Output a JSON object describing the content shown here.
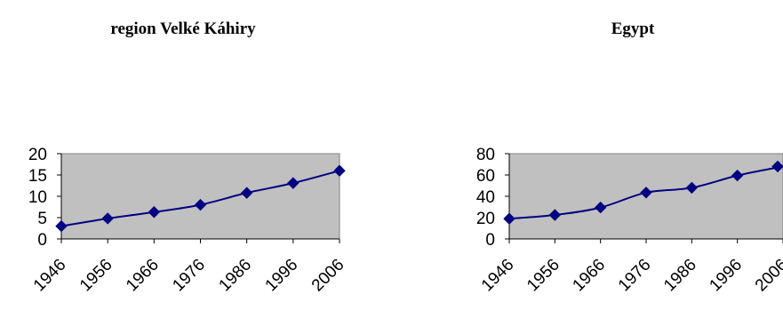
{
  "chart_data": [
    {
      "type": "line",
      "title": "region Velké Káhiry",
      "xlabel": "",
      "ylabel": "",
      "categories": [
        "1946",
        "1956",
        "1966",
        "1976",
        "1986",
        "1996",
        "2006"
      ],
      "series": [
        {
          "values": [
            3.0,
            4.8,
            6.3,
            8.0,
            10.8,
            13.1,
            16.0
          ]
        }
      ],
      "ylim": [
        0,
        20
      ],
      "yticks": [
        "0",
        "5",
        "10",
        "15",
        "20"
      ],
      "grid": false,
      "legend": "none",
      "colors": {
        "plot_area": "#c0c0c0",
        "series": "#000080"
      }
    },
    {
      "type": "line",
      "title": "Egypt",
      "xlabel": "",
      "ylabel": "",
      "categories": [
        "1946",
        "1956",
        "1966",
        "1976",
        "1986",
        "1996",
        "2006"
      ],
      "series": [
        {
          "values": [
            19.0,
            22.5,
            29.5,
            43.5,
            48.0,
            59.5,
            68.0
          ]
        }
      ],
      "ylim": [
        0,
        80
      ],
      "yticks": [
        "0",
        "20",
        "40",
        "60",
        "80"
      ],
      "grid": false,
      "legend": "none",
      "colors": {
        "plot_area": "#c0c0c0",
        "series": "#000080"
      }
    }
  ]
}
